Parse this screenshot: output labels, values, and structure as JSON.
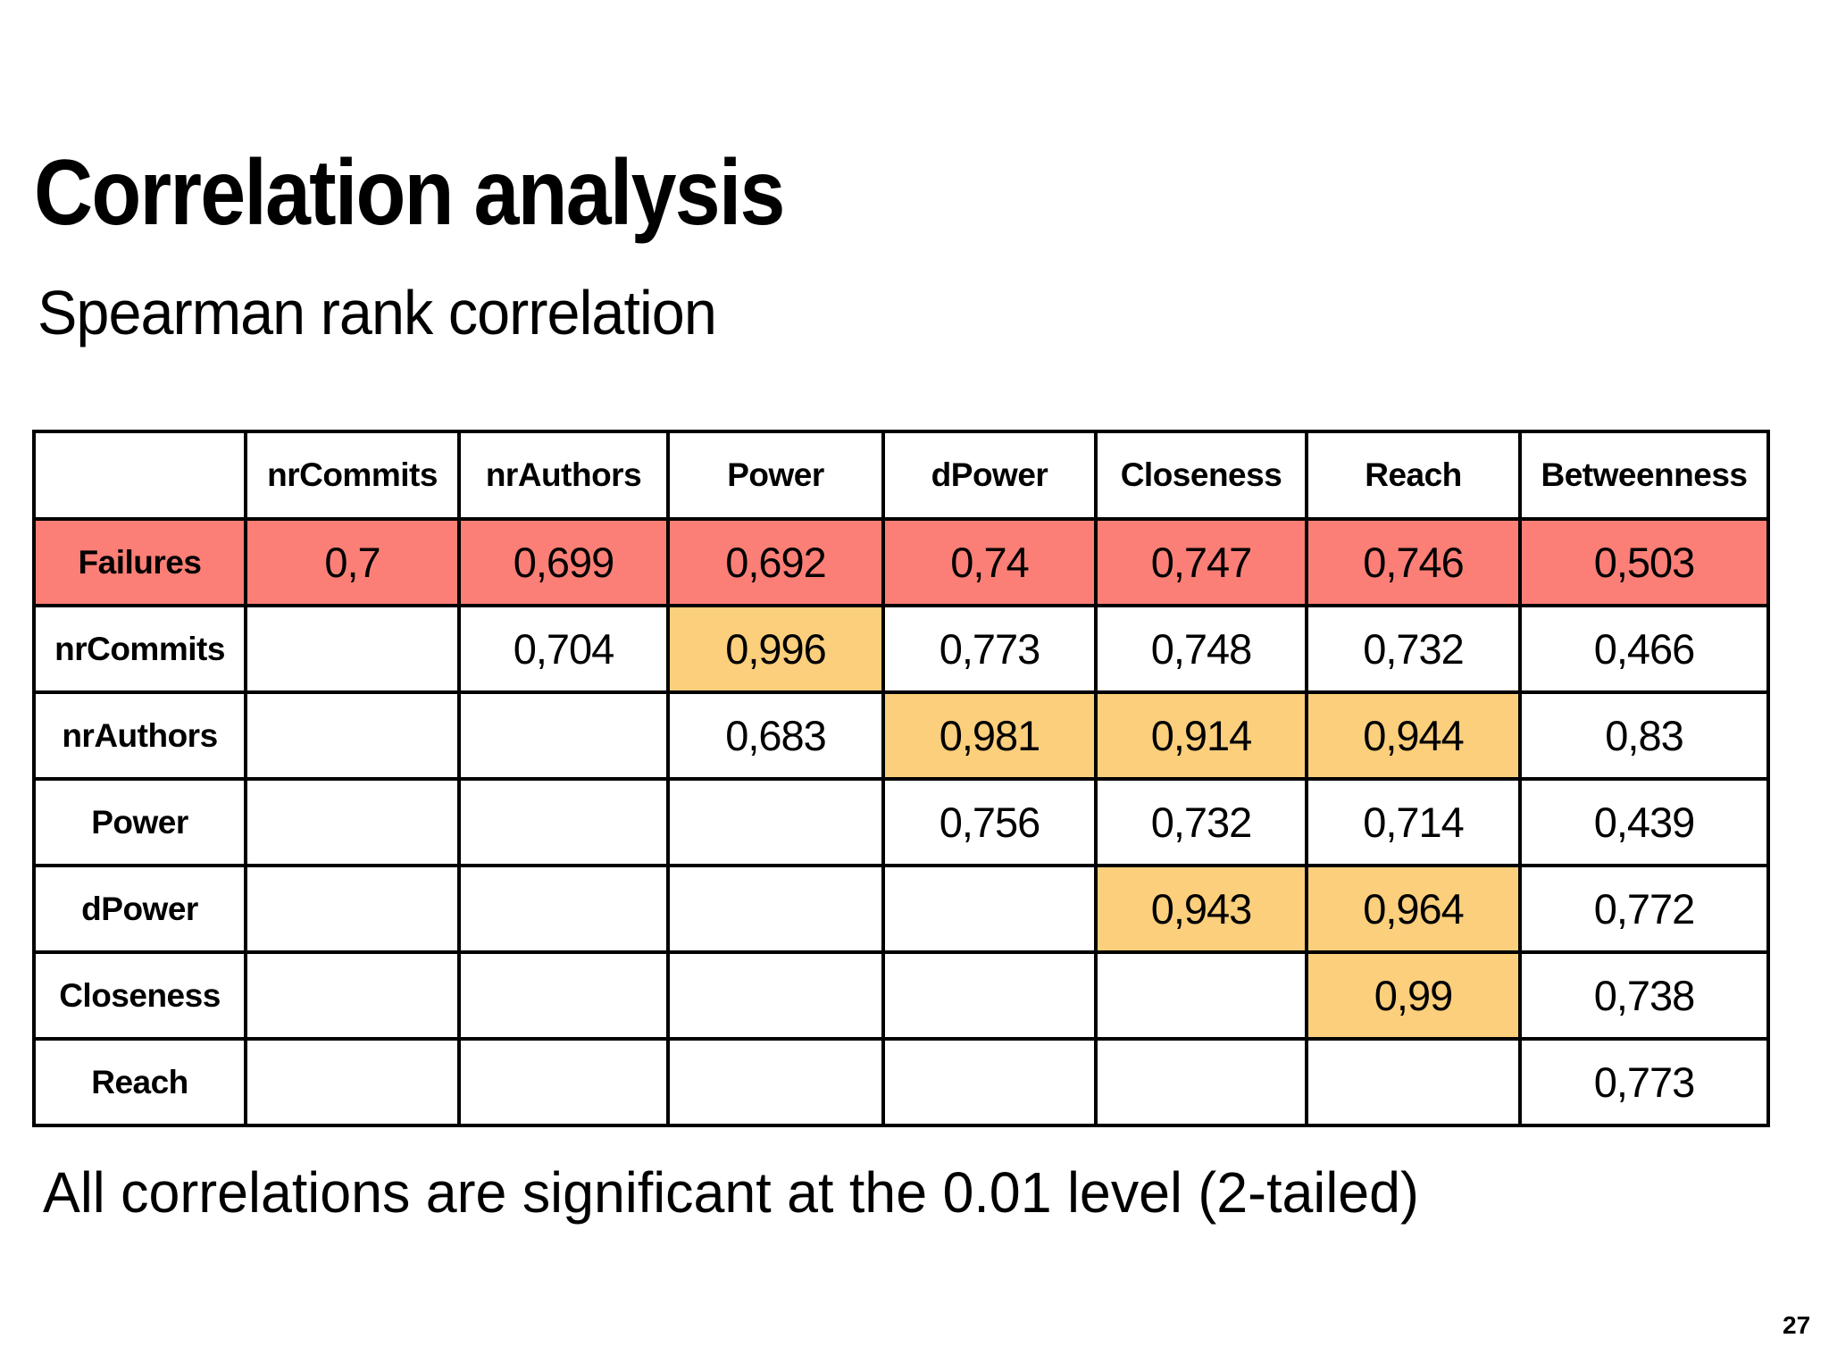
{
  "slide": {
    "title": "Correlation analysis",
    "subtitle": "Spearman rank correlation",
    "footer": "All correlations are significant at the 0.01 level (2-tailed)",
    "page_number": "27"
  },
  "colors": {
    "highlight_red": "#FB7F76",
    "highlight_yellow": "#FBCF7B",
    "border": "#000000",
    "background": "#FFFFFF",
    "text": "#000000"
  },
  "table": {
    "columns": [
      "nrCommits",
      "nrAuthors",
      "Power",
      "dPower",
      "Closeness",
      "Reach",
      "Betweenness"
    ],
    "rows": [
      {
        "label": "Failures",
        "label_hl": "red",
        "cells": [
          {
            "v": "0,7",
            "hl": "red"
          },
          {
            "v": "0,699",
            "hl": "red"
          },
          {
            "v": "0,692",
            "hl": "red"
          },
          {
            "v": "0,74",
            "hl": "red"
          },
          {
            "v": "0,747",
            "hl": "red"
          },
          {
            "v": "0,746",
            "hl": "red"
          },
          {
            "v": "0,503",
            "hl": "red"
          }
        ]
      },
      {
        "label": "nrCommits",
        "label_hl": "none",
        "cells": [
          {
            "v": "",
            "hl": "none"
          },
          {
            "v": "0,704",
            "hl": "none"
          },
          {
            "v": "0,996",
            "hl": "yellow"
          },
          {
            "v": "0,773",
            "hl": "none"
          },
          {
            "v": "0,748",
            "hl": "none"
          },
          {
            "v": "0,732",
            "hl": "none"
          },
          {
            "v": "0,466",
            "hl": "none"
          }
        ]
      },
      {
        "label": "nrAuthors",
        "label_hl": "none",
        "cells": [
          {
            "v": "",
            "hl": "none"
          },
          {
            "v": "",
            "hl": "none"
          },
          {
            "v": "0,683",
            "hl": "none"
          },
          {
            "v": "0,981",
            "hl": "yellow"
          },
          {
            "v": "0,914",
            "hl": "yellow"
          },
          {
            "v": "0,944",
            "hl": "yellow"
          },
          {
            "v": "0,83",
            "hl": "none"
          }
        ]
      },
      {
        "label": "Power",
        "label_hl": "none",
        "cells": [
          {
            "v": "",
            "hl": "none"
          },
          {
            "v": "",
            "hl": "none"
          },
          {
            "v": "",
            "hl": "none"
          },
          {
            "v": "0,756",
            "hl": "none"
          },
          {
            "v": "0,732",
            "hl": "none"
          },
          {
            "v": "0,714",
            "hl": "none"
          },
          {
            "v": "0,439",
            "hl": "none"
          }
        ]
      },
      {
        "label": "dPower",
        "label_hl": "none",
        "cells": [
          {
            "v": "",
            "hl": "none"
          },
          {
            "v": "",
            "hl": "none"
          },
          {
            "v": "",
            "hl": "none"
          },
          {
            "v": "",
            "hl": "none"
          },
          {
            "v": "0,943",
            "hl": "yellow"
          },
          {
            "v": "0,964",
            "hl": "yellow"
          },
          {
            "v": "0,772",
            "hl": "none"
          }
        ]
      },
      {
        "label": "Closeness",
        "label_hl": "none",
        "cells": [
          {
            "v": "",
            "hl": "none"
          },
          {
            "v": "",
            "hl": "none"
          },
          {
            "v": "",
            "hl": "none"
          },
          {
            "v": "",
            "hl": "none"
          },
          {
            "v": "",
            "hl": "none"
          },
          {
            "v": "0,99",
            "hl": "yellow"
          },
          {
            "v": "0,738",
            "hl": "none"
          }
        ]
      },
      {
        "label": "Reach",
        "label_hl": "none",
        "cells": [
          {
            "v": "",
            "hl": "none"
          },
          {
            "v": "",
            "hl": "none"
          },
          {
            "v": "",
            "hl": "none"
          },
          {
            "v": "",
            "hl": "none"
          },
          {
            "v": "",
            "hl": "none"
          },
          {
            "v": "",
            "hl": "none"
          },
          {
            "v": "0,773",
            "hl": "none"
          }
        ]
      }
    ]
  }
}
